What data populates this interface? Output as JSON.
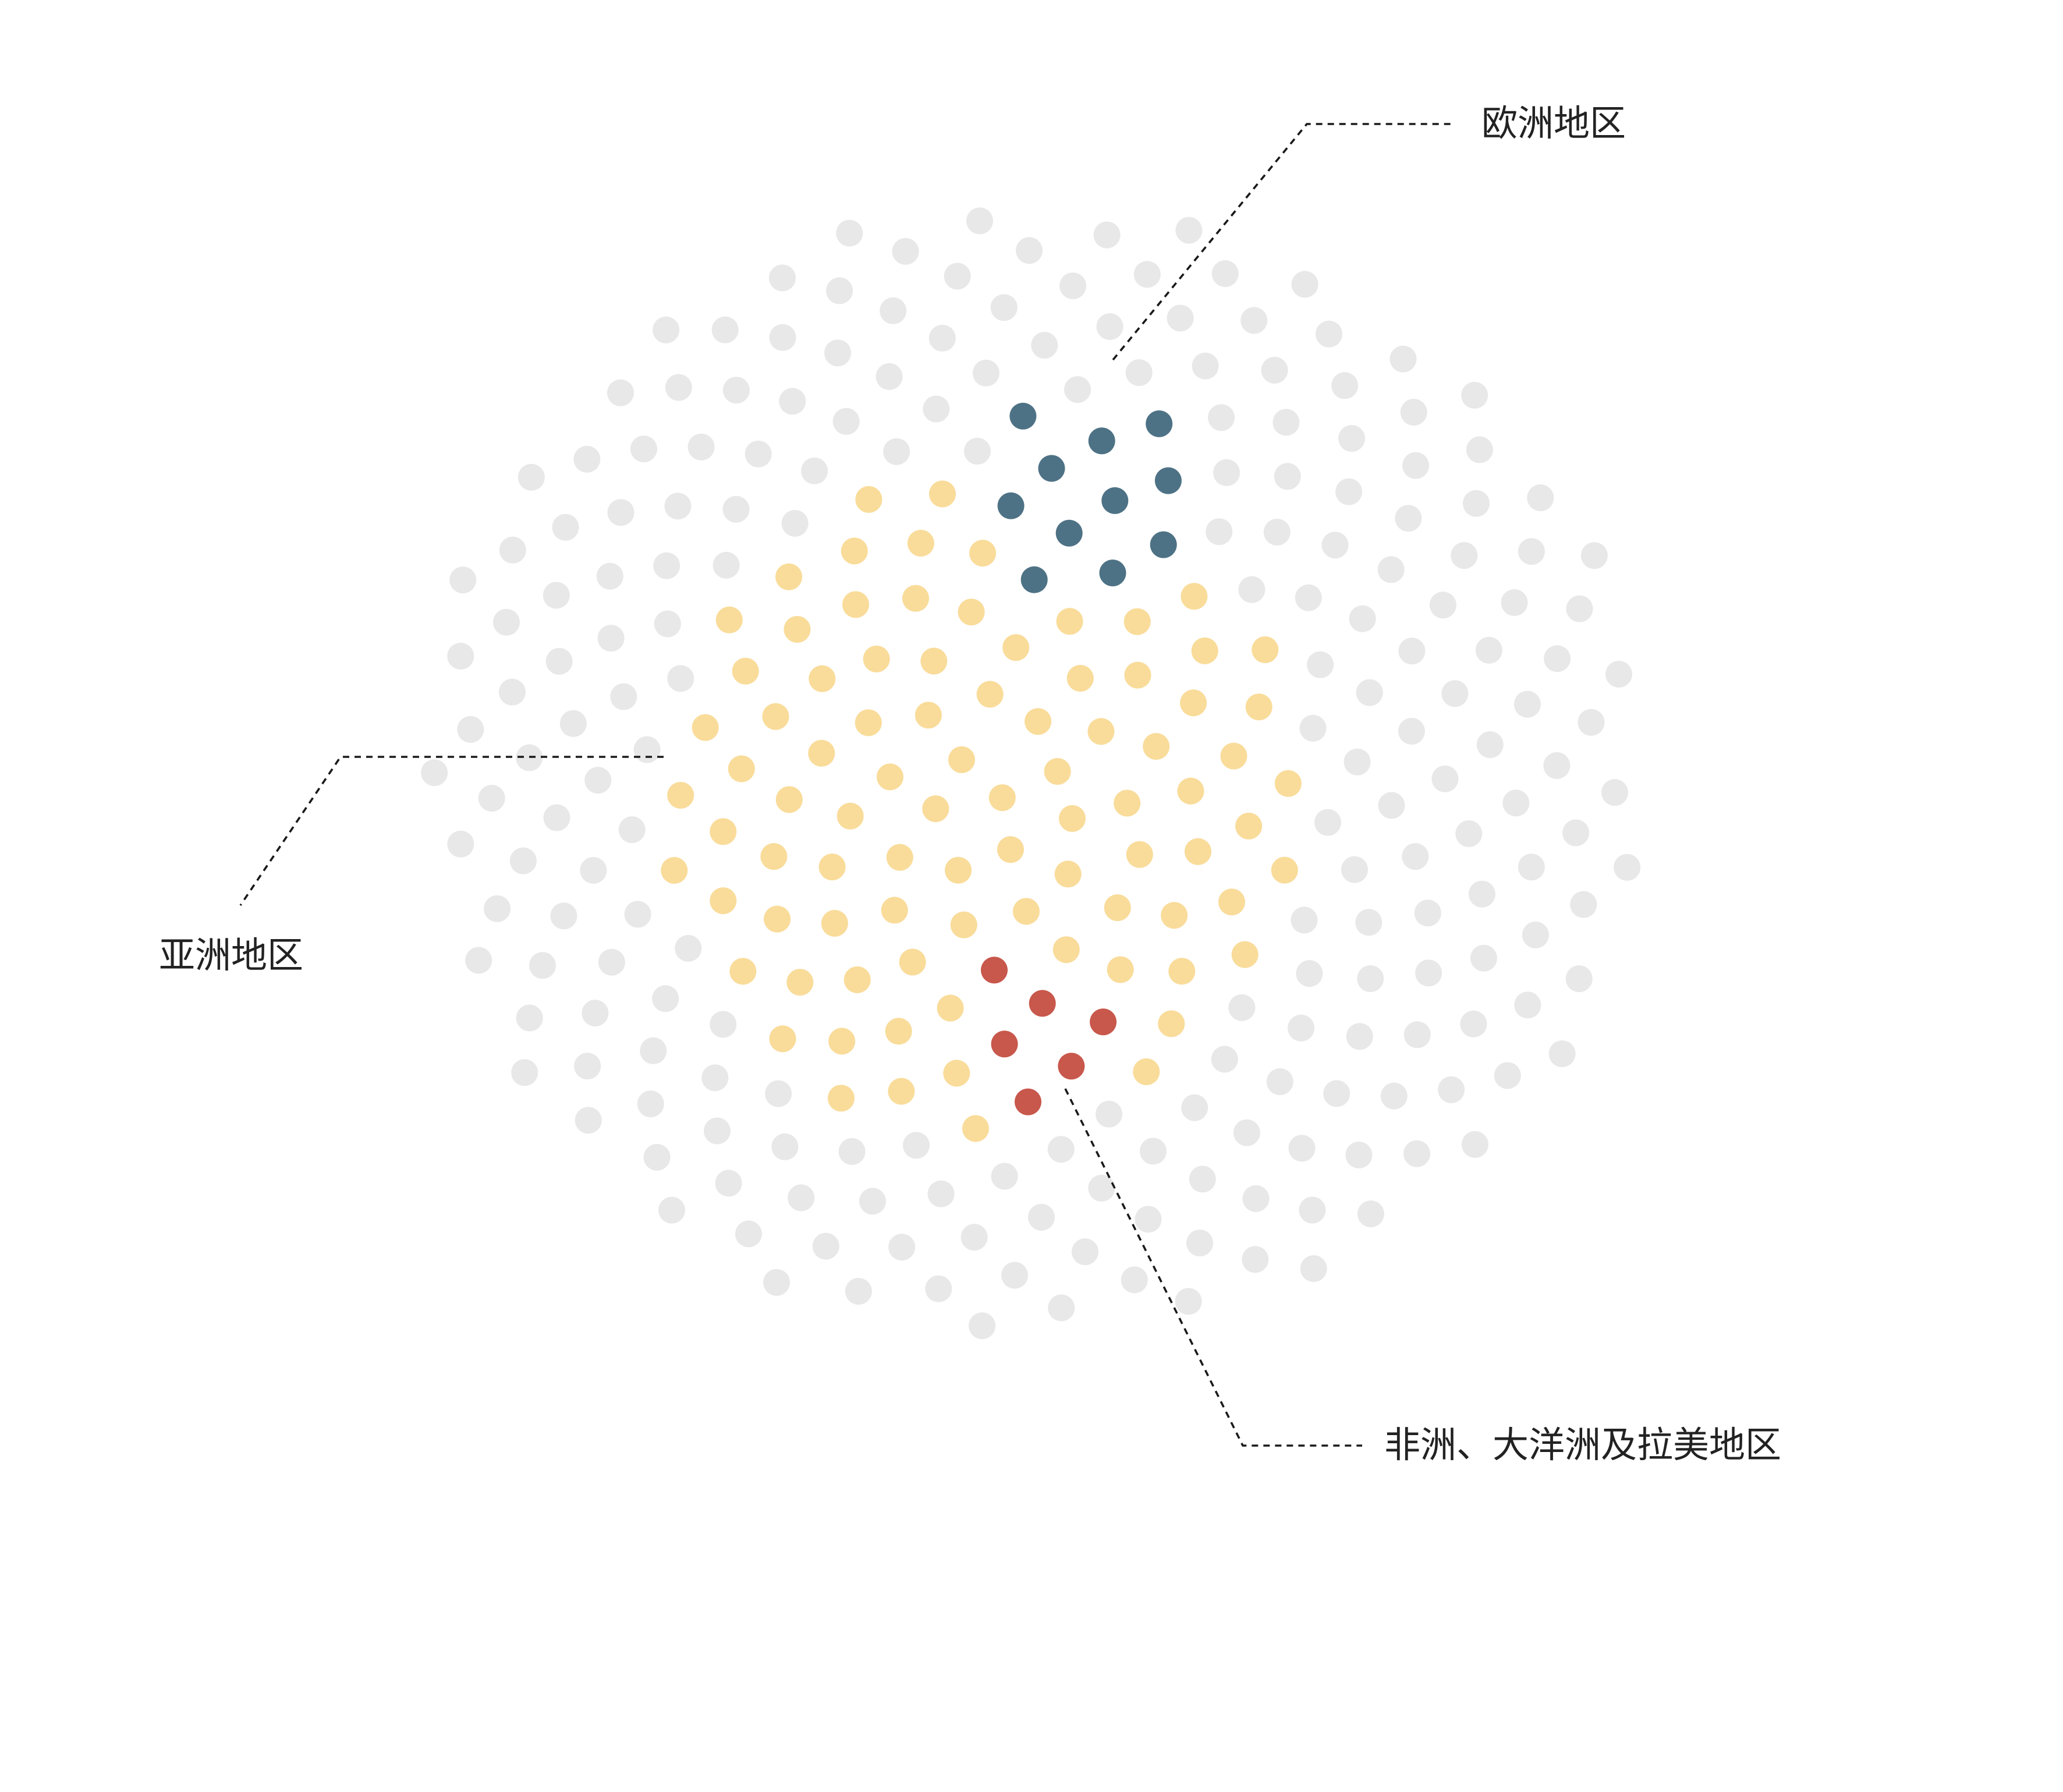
{
  "chart_data": {
    "type": "scatter",
    "title": "",
    "regions": [
      {
        "id": "asia",
        "label": "亚洲地区",
        "color": "#f9dc9a",
        "count": 87
      },
      {
        "id": "europe",
        "label": "欧洲地区",
        "color": "#4e7285",
        "count": 11
      },
      {
        "id": "other",
        "label": "非洲、大洋洲及拉美地区",
        "color": "#c8574c",
        "count": 6
      }
    ],
    "background_color": "#e8e8e8",
    "background_count": 214
  }
}
